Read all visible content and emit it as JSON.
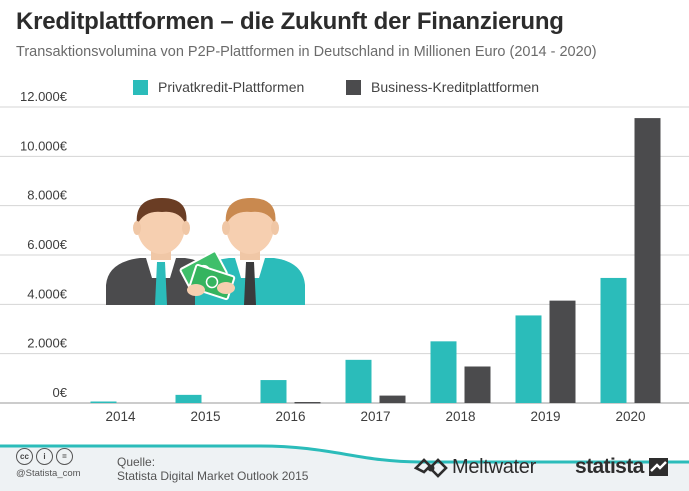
{
  "header": {
    "title": "Kreditplattformen – die Zukunft der Finanzierung",
    "subtitle": "Transaktionsvolumina von P2P-Plattformen in Deutschland in Millionen Euro (2014 - 2020)"
  },
  "colors": {
    "teal": "#2bbcba",
    "dark": "#4b4b4d",
    "grid": "#d4d4d4",
    "footer_curve": "#2bbcba",
    "footer_fill": "#e9eef0"
  },
  "chart_data": {
    "type": "bar",
    "title": "Kreditplattformen – die Zukunft der Finanzierung",
    "subtitle": "Transaktionsvolumina von P2P-Plattformen in Deutschland in Millionen Euro (2014 - 2020)",
    "categories": [
      "2014",
      "2015",
      "2016",
      "2017",
      "2018",
      "2019",
      "2020"
    ],
    "series": [
      {
        "name": "Privatkredit-Plattformen",
        "color": "#2bbcba",
        "values": [
          60,
          330,
          930,
          1750,
          2500,
          3550,
          5070
        ]
      },
      {
        "name": "Business-Kreditplattformen",
        "color": "#4b4b4d",
        "values": [
          0,
          0,
          40,
          300,
          1480,
          4150,
          11550
        ]
      }
    ],
    "y_ticks": [
      0,
      2000,
      4000,
      6000,
      8000,
      10000,
      12000
    ],
    "y_tick_labels": [
      "0€",
      "2.000€",
      "4.000€",
      "6.000€",
      "8.000€",
      "10.000€",
      "12.000€"
    ],
    "ylim": [
      0,
      12000
    ],
    "xlabel": "",
    "ylabel": "",
    "grid": true,
    "legend_position": "top"
  },
  "footer": {
    "handle": "@Statista_com",
    "source_label": "Quelle:",
    "source_text": "Statista Digital Market Outlook 2015",
    "cc_icons": [
      "cc",
      "i",
      "="
    ],
    "logo_meltwater": "Meltwater",
    "logo_statista": "statista"
  }
}
